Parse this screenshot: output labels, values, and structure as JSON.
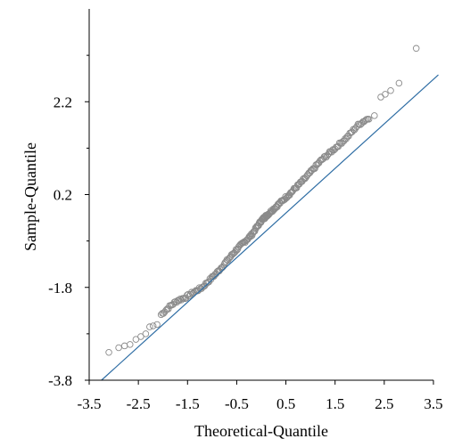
{
  "chart_data": {
    "type": "scatter",
    "title": "",
    "xlabel": "Theoretical-Quantile",
    "ylabel": "Sample-Quantile",
    "xlim": [
      -3.5,
      3.5
    ],
    "ylim": [
      -3.8,
      4.2
    ],
    "x_ticks": [
      -3.5,
      -2.5,
      -1.5,
      -0.5,
      0.5,
      1.5,
      2.5,
      3.5
    ],
    "x_tick_labels": [
      "-3.5",
      "-2.5",
      "-1.5",
      "-0.5",
      "0.5",
      "1.5",
      "2.5",
      "3.5"
    ],
    "y_ticks": [
      -3.8,
      -1.8,
      0.2,
      2.2
    ],
    "y_tick_labels": [
      "-3.8",
      "-1.8",
      "0.2",
      "2.2"
    ],
    "y_minor_ticks": [
      -2.8,
      -0.8,
      1.2,
      3.2
    ],
    "grid": false,
    "legend": "none",
    "colors": {
      "points": "#8a8a8a",
      "line": "#2e6da4",
      "axes": "#000000"
    },
    "reference_line": {
      "x": [
        -3.25,
        3.6
      ],
      "y": [
        -3.8,
        2.78
      ]
    },
    "outliers": [
      {
        "x": -3.1,
        "y": -3.2
      },
      {
        "x": -2.9,
        "y": -3.1
      },
      {
        "x": -2.78,
        "y": -3.06
      },
      {
        "x": -2.67,
        "y": -3.03
      },
      {
        "x": -2.55,
        "y": -2.92
      },
      {
        "x": -2.45,
        "y": -2.86
      },
      {
        "x": -2.35,
        "y": -2.8
      },
      {
        "x": -2.27,
        "y": -2.65
      },
      {
        "x": -2.2,
        "y": -2.63
      },
      {
        "x": -2.12,
        "y": -2.6
      },
      {
        "x": 2.3,
        "y": 1.9
      },
      {
        "x": 2.43,
        "y": 2.3
      },
      {
        "x": 2.52,
        "y": 2.36
      },
      {
        "x": 2.63,
        "y": 2.44
      },
      {
        "x": 2.8,
        "y": 2.6
      },
      {
        "x": 3.15,
        "y": 3.35
      }
    ],
    "body_points": {
      "count": 230,
      "x_range": [
        -2.05,
        2.2
      ],
      "points": [
        [
          -2.05,
          -2.4
        ],
        [
          -1.95,
          -2.3
        ],
        [
          -1.85,
          -2.2
        ],
        [
          -1.7,
          -2.08
        ],
        [
          -1.55,
          -2.02
        ],
        [
          -1.4,
          -1.92
        ],
        [
          -1.2,
          -1.8
        ],
        [
          -0.9,
          -1.48
        ],
        [
          -0.5,
          -0.98
        ],
        [
          -0.2,
          -0.67
        ],
        [
          0.0,
          -0.36
        ],
        [
          0.3,
          -0.06
        ],
        [
          0.6,
          0.24
        ],
        [
          0.9,
          0.56
        ],
        [
          1.2,
          0.92
        ],
        [
          1.5,
          1.2
        ],
        [
          1.75,
          1.44
        ],
        [
          1.95,
          1.68
        ],
        [
          2.05,
          1.76
        ],
        [
          2.2,
          1.86
        ]
      ]
    }
  }
}
